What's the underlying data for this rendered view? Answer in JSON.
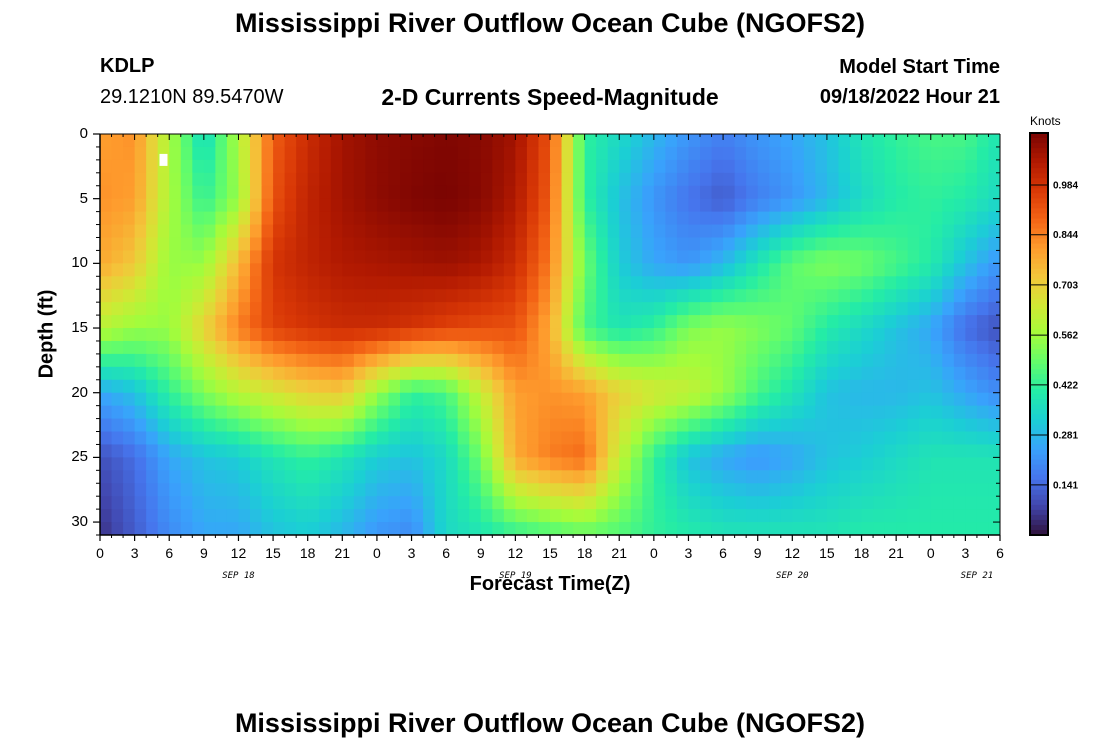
{
  "page": {
    "title": "Mississippi River Outflow Ocean Cube (NGOFS2)",
    "title_repeat": "Mississippi River Outflow Ocean Cube (NGOFS2)",
    "station": "KDLP",
    "coords": "29.1210N  89.5470W",
    "subtitle": "2-D Currents Speed-Magnitude",
    "model_start_label": "Model Start Time",
    "model_start_value": "09/18/2022 Hour 21"
  },
  "chart_data": {
    "type": "heatmap",
    "title": "2-D Currents Speed-Magnitude",
    "xlabel": "Forecast Time(Z)",
    "ylabel": "Depth (ft)",
    "colorbar_label": "Knots",
    "x_tick_labels": [
      "0",
      "3",
      "6",
      "9",
      "12",
      "15",
      "18",
      "21",
      "0",
      "3",
      "6",
      "9",
      "12",
      "15",
      "18",
      "21",
      "0",
      "3",
      "6",
      "9",
      "12",
      "15",
      "18",
      "21",
      "0",
      "3",
      "6"
    ],
    "date_labels": [
      "SEP 18",
      "SEP 19",
      "SEP 20",
      "SEP 21"
    ],
    "y_tick_labels": [
      "0",
      "5",
      "10",
      "15",
      "20",
      "25",
      "30"
    ],
    "xlim_hours": [
      0,
      78
    ],
    "ylim_ft": [
      0,
      31
    ],
    "colorbar_ticks": [
      "0.984",
      "0.844",
      "0.703",
      "0.562",
      "0.422",
      "0.281",
      "0.141"
    ],
    "colorbar_tick_values": [
      0.984,
      0.844,
      0.703,
      0.562,
      0.422,
      0.281,
      0.141
    ],
    "value_range": [
      0.0,
      1.13
    ],
    "grid_hours": [
      0,
      3,
      6,
      9,
      12,
      15,
      18,
      21,
      24,
      27,
      30,
      33,
      36,
      39,
      42,
      45,
      48,
      51,
      54,
      57,
      60,
      63,
      66,
      69,
      72,
      75,
      78
    ],
    "grid_depths_ft": [
      0,
      5,
      10,
      15,
      20,
      25,
      31
    ],
    "speed_grid": [
      [
        0.8,
        0.82,
        0.58,
        0.35,
        0.58,
        0.9,
        1.0,
        1.07,
        1.1,
        1.11,
        1.12,
        1.11,
        1.07,
        0.92,
        0.42,
        0.35,
        0.28,
        0.22,
        0.18,
        0.22,
        0.25,
        0.3,
        0.38,
        0.42,
        0.45,
        0.45,
        0.38
      ],
      [
        0.82,
        0.8,
        0.58,
        0.42,
        0.55,
        0.92,
        1.02,
        1.07,
        1.1,
        1.12,
        1.13,
        1.11,
        1.05,
        0.9,
        0.42,
        0.3,
        0.22,
        0.16,
        0.12,
        0.18,
        0.22,
        0.28,
        0.35,
        0.4,
        0.42,
        0.4,
        0.35
      ],
      [
        0.78,
        0.72,
        0.55,
        0.55,
        0.75,
        0.98,
        1.02,
        1.05,
        1.06,
        1.07,
        1.08,
        1.06,
        1.0,
        0.85,
        0.5,
        0.32,
        0.25,
        0.22,
        0.28,
        0.38,
        0.48,
        0.52,
        0.5,
        0.45,
        0.4,
        0.3,
        0.22
      ],
      [
        0.6,
        0.55,
        0.55,
        0.7,
        0.85,
        0.95,
        0.98,
        1.0,
        1.0,
        0.98,
        0.95,
        0.93,
        0.92,
        0.78,
        0.45,
        0.38,
        0.42,
        0.52,
        0.55,
        0.52,
        0.48,
        0.4,
        0.35,
        0.3,
        0.25,
        0.15,
        0.1
      ],
      [
        0.25,
        0.3,
        0.42,
        0.52,
        0.6,
        0.65,
        0.7,
        0.72,
        0.55,
        0.42,
        0.45,
        0.62,
        0.8,
        0.82,
        0.8,
        0.7,
        0.65,
        0.62,
        0.55,
        0.45,
        0.38,
        0.3,
        0.28,
        0.28,
        0.3,
        0.25,
        0.2
      ],
      [
        0.1,
        0.15,
        0.25,
        0.3,
        0.32,
        0.38,
        0.42,
        0.38,
        0.32,
        0.3,
        0.35,
        0.5,
        0.78,
        0.85,
        0.88,
        0.62,
        0.42,
        0.3,
        0.25,
        0.22,
        0.25,
        0.3,
        0.32,
        0.35,
        0.38,
        0.38,
        0.38
      ],
      [
        0.05,
        0.12,
        0.2,
        0.25,
        0.25,
        0.3,
        0.32,
        0.28,
        0.22,
        0.2,
        0.35,
        0.38,
        0.42,
        0.45,
        0.48,
        0.46,
        0.42,
        0.4,
        0.38,
        0.38,
        0.38,
        0.38,
        0.4,
        0.4,
        0.4,
        0.4,
        0.4
      ]
    ],
    "missing_marker_hour": 5.5,
    "missing_marker_depth_ft": 2.0
  },
  "colors": {
    "colormap": [
      "#30123b",
      "#4145ab",
      "#4675ed",
      "#39a2fc",
      "#1bcfd4",
      "#24eca6",
      "#61fc6c",
      "#a4fc3b",
      "#d1e834",
      "#f3c63a",
      "#fe9b2d",
      "#f36315",
      "#d93806",
      "#b11901",
      "#7a0402"
    ]
  }
}
